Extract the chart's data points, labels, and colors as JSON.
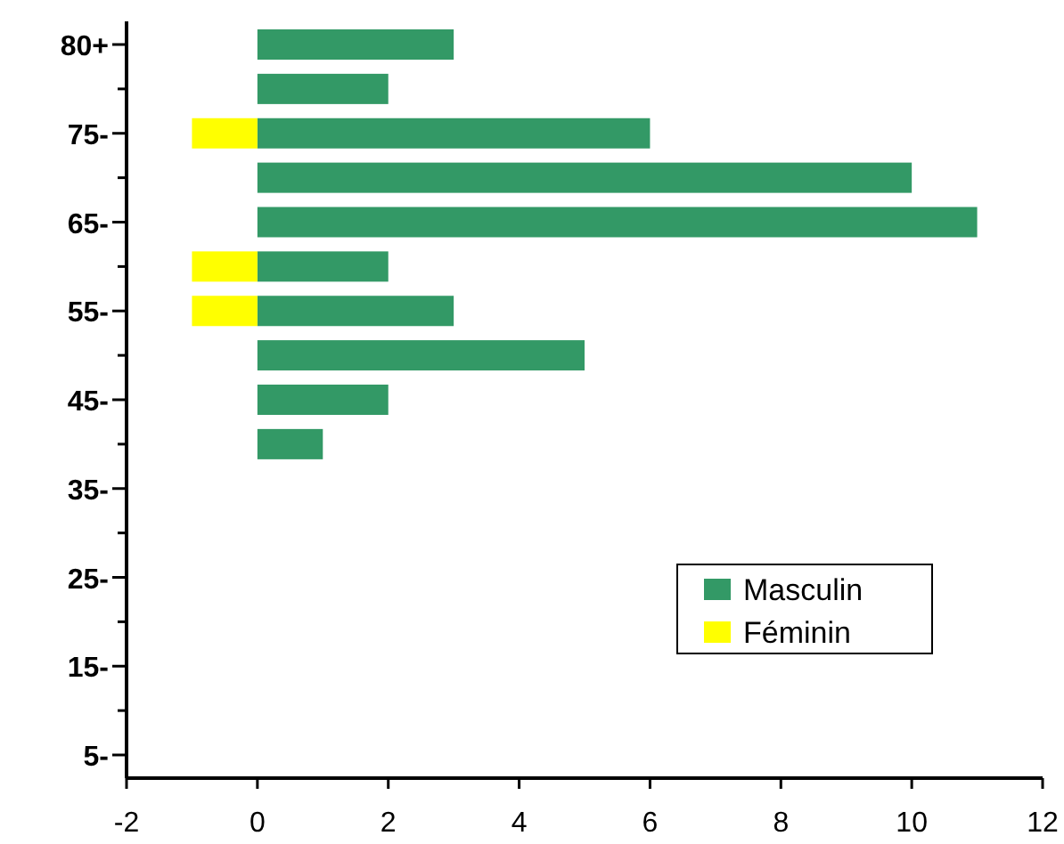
{
  "chart_data": {
    "type": "bar",
    "orientation": "horizontal",
    "stacked": true,
    "categories": [
      "80+",
      null,
      "75-",
      null,
      "65-",
      null,
      "55-",
      null,
      "45-",
      null,
      "35-",
      null,
      "25-",
      null,
      "15-",
      null,
      "5-"
    ],
    "series": [
      {
        "name": "Masculin",
        "color": "#339966",
        "values": [
          3,
          2,
          6,
          10,
          11,
          2,
          3,
          5,
          2,
          1,
          0,
          0,
          0,
          0,
          0,
          0,
          0
        ]
      },
      {
        "name": "Féminin",
        "color": "#ffff00",
        "values": [
          0,
          0,
          -1,
          0,
          0,
          -1,
          -1,
          0,
          0,
          0,
          0,
          0,
          0,
          0,
          0,
          0,
          0
        ]
      }
    ],
    "xlim": [
      -2,
      12
    ],
    "xticks": [
      -2,
      0,
      2,
      4,
      6,
      8,
      10,
      12
    ],
    "legend": "bottom right"
  }
}
